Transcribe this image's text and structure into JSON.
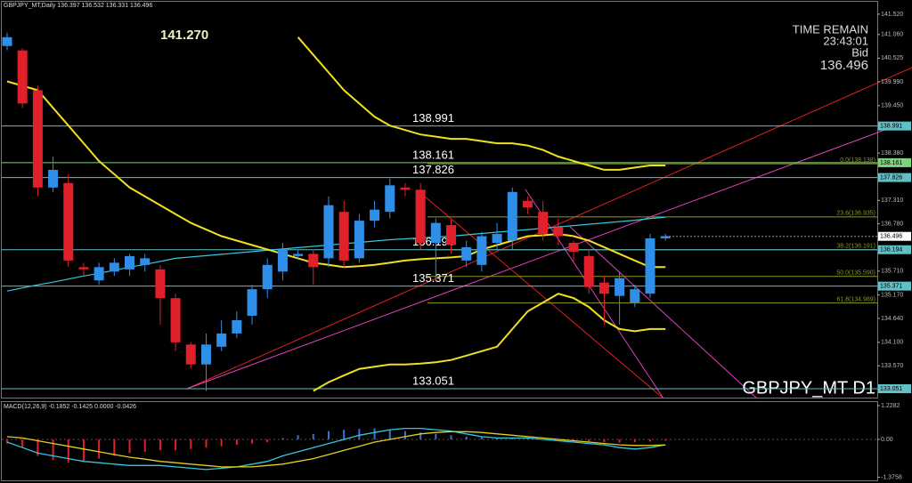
{
  "chart_data": [
    {
      "type": "candlestick",
      "title": "GBPJPY_MT,Daily  136.397 136.532 136.331 136.496",
      "up_color": "#2f8fe8",
      "down_color": "#e0202a",
      "open": [
        140.8,
        140.7,
        139.8,
        137.6,
        137.7,
        135.8,
        135.5,
        135.7,
        135.75,
        135.85,
        135.75,
        135.1,
        134.05,
        133.6,
        134.0,
        134.3,
        134.7,
        135.3,
        135.7,
        136.05,
        136.1,
        136.0,
        137.05,
        136.0,
        136.85,
        137.05,
        137.6,
        137.55,
        136.35,
        136.75,
        135.95,
        135.85,
        136.35,
        136.4,
        137.3,
        137.05,
        136.7,
        136.35,
        136.05,
        135.45,
        135.15,
        135.0,
        135.2,
        136.45
      ],
      "high": [
        141.1,
        140.75,
        139.9,
        138.3,
        137.9,
        135.9,
        135.9,
        136.0,
        136.1,
        136.1,
        135.85,
        135.2,
        134.1,
        134.3,
        134.6,
        134.8,
        135.4,
        136.0,
        136.35,
        136.2,
        136.2,
        137.4,
        137.3,
        137.0,
        137.3,
        137.8,
        137.7,
        137.7,
        136.9,
        136.9,
        136.4,
        136.6,
        136.8,
        137.6,
        137.4,
        137.3,
        136.9,
        136.4,
        136.2,
        135.6,
        135.7,
        135.4,
        136.55,
        136.55
      ],
      "low": [
        140.7,
        139.4,
        137.4,
        137.5,
        135.8,
        135.6,
        135.4,
        135.6,
        135.6,
        135.7,
        134.5,
        133.9,
        133.5,
        133.0,
        133.9,
        134.2,
        134.5,
        135.1,
        135.5,
        136.0,
        135.4,
        135.8,
        135.8,
        135.9,
        136.7,
        136.9,
        137.4,
        136.2,
        135.5,
        136.1,
        135.8,
        135.7,
        136.2,
        136.2,
        137.0,
        136.4,
        136.3,
        135.9,
        135.2,
        134.5,
        134.5,
        134.9,
        135.1,
        136.4
      ],
      "close": [
        141.0,
        139.5,
        137.6,
        138.0,
        135.95,
        135.75,
        135.8,
        135.9,
        136.05,
        136.0,
        135.1,
        134.1,
        133.6,
        134.05,
        134.3,
        134.6,
        135.3,
        135.85,
        136.2,
        136.1,
        135.8,
        137.2,
        135.95,
        136.85,
        137.1,
        137.65,
        137.55,
        136.35,
        136.8,
        136.3,
        136.25,
        136.5,
        136.55,
        137.5,
        137.15,
        136.55,
        136.5,
        136.15,
        135.35,
        135.2,
        135.55,
        135.3,
        136.45,
        136.5
      ],
      "overlays": [
        {
          "color": "#33c8e0",
          "values": [
            135.26,
            135.33,
            135.4,
            135.46,
            135.53,
            135.6,
            135.66,
            135.73,
            135.8,
            135.86,
            135.93,
            136.0,
            136.03,
            136.06,
            136.09,
            136.12,
            136.15,
            136.18,
            136.21,
            136.24,
            136.27,
            136.3,
            136.33,
            136.36,
            136.39,
            136.42,
            136.44,
            136.46,
            136.48,
            136.5,
            136.53,
            136.56,
            136.59,
            136.62,
            136.65,
            136.68,
            136.71,
            136.74,
            136.77,
            136.8,
            136.83,
            136.86,
            136.9,
            136.93
          ]
        },
        {
          "color": "#f0e020",
          "values": [
            140.0,
            139.9,
            139.8,
            139.4,
            139.0,
            138.6,
            138.2,
            137.9,
            137.6,
            137.4,
            137.2,
            137.0,
            136.8,
            136.65,
            136.5,
            136.4,
            136.3,
            136.2,
            136.1,
            136.0,
            135.9,
            135.85,
            135.8,
            135.82,
            135.85,
            135.9,
            135.95,
            135.98,
            136.0,
            136.02,
            136.05,
            136.2,
            136.3,
            136.4,
            136.5,
            136.52,
            136.55,
            136.5,
            136.4,
            136.25,
            136.1,
            135.95,
            135.8,
            135.8
          ]
        },
        {
          "color": "#f0e020",
          "values": [
            null,
            null,
            null,
            null,
            null,
            null,
            null,
            null,
            null,
            null,
            null,
            null,
            null,
            null,
            null,
            null,
            null,
            null,
            null,
            141.0,
            140.6,
            140.2,
            139.8,
            139.5,
            139.2,
            139.0,
            138.9,
            138.8,
            138.75,
            138.7,
            138.7,
            138.65,
            138.6,
            138.6,
            138.55,
            138.45,
            138.3,
            138.2,
            138.1,
            138.0,
            138.0,
            138.05,
            138.1,
            138.1
          ]
        },
        {
          "color": "#f0e020",
          "values": [
            null,
            null,
            null,
            null,
            null,
            null,
            null,
            null,
            null,
            null,
            null,
            null,
            null,
            null,
            null,
            null,
            null,
            null,
            null,
            null,
            133.0,
            133.2,
            133.35,
            133.5,
            133.55,
            133.6,
            133.6,
            133.62,
            133.65,
            133.7,
            133.8,
            133.9,
            134.0,
            134.4,
            134.8,
            135.0,
            135.2,
            135.1,
            134.9,
            134.6,
            134.4,
            134.35,
            134.4,
            134.4
          ]
        }
      ],
      "ylim": [
        132.83,
        141.84
      ],
      "yticks": [
        {
          "value": 141.52,
          "label": "141.520"
        },
        {
          "value": 141.06,
          "label": "141.060"
        },
        140.525,
        {
          "value": 139.99,
          "label": "139.990"
        },
        {
          "value": 139.45,
          "label": "139.450"
        },
        {
          "value": 138.38,
          "label": "138.380"
        },
        {
          "value": 137.31,
          "label": "137.310"
        },
        {
          "value": 136.78,
          "label": "136.780"
        },
        {
          "value": 135.71,
          "label": "135.710"
        },
        {
          "value": 135.17,
          "label": "135.170"
        },
        {
          "value": 134.64,
          "label": "134.640"
        },
        {
          "value": 134.1,
          "label": "134.100"
        },
        {
          "value": 133.57,
          "label": "133.570"
        }
      ],
      "levels": [
        {
          "value": 138.991,
          "color": "#5fc0c8"
        },
        {
          "value": 138.161,
          "color": "#7cd47c"
        },
        {
          "value": 137.826,
          "color": "#5fc0c8"
        },
        {
          "value": 136.194,
          "color": "#5fc0c8"
        },
        {
          "value": 135.371,
          "color": "#5fc0c8"
        },
        {
          "value": 133.051,
          "color": "#5fc0c8"
        }
      ],
      "fib_levels": [
        {
          "label": "0.0(138.138)",
          "value": 138.138
        },
        {
          "label": "23.6(136.935)",
          "value": 136.935
        },
        {
          "label": "38.2(136.191)",
          "value": 136.191
        },
        {
          "label": "50.0(135.590)",
          "value": 135.59
        },
        {
          "label": "61.8(134.989)",
          "value": 134.989
        }
      ],
      "fib_color": "#8a9a20",
      "bid": 136.496,
      "high_label": "141.270",
      "time_remain_label": "TIME REMAIN",
      "time_remain": "23:43:01",
      "bid_label": "Bid",
      "watermark": "GBPJPY_MT D1"
    },
    {
      "type": "macd",
      "title": "MACD(12,26,9) -0.1852 -0.1425 0.0000 -0.0426",
      "histogram": [
        -0.15,
        -0.3,
        -0.6,
        -0.75,
        -0.85,
        -0.8,
        -0.7,
        -0.6,
        -0.5,
        -0.45,
        -0.4,
        -0.4,
        -0.35,
        -0.3,
        -0.25,
        -0.2,
        -0.15,
        -0.1,
        0.05,
        0.15,
        0.2,
        0.3,
        0.35,
        0.38,
        0.4,
        0.35,
        0.3,
        0.25,
        0.2,
        0.15,
        0.1,
        0.08,
        0.06,
        0.05,
        0.03,
        0.01,
        -0.02,
        -0.05,
        -0.08,
        -0.1,
        -0.12,
        -0.1,
        -0.08,
        -0.05
      ],
      "pos_color": "#3a6fe0",
      "neg_color": "#e0202a",
      "series": [
        {
          "color": "#33c8e0",
          "values": [
            -0.1,
            -0.3,
            -0.5,
            -0.6,
            -0.7,
            -0.8,
            -0.85,
            -0.9,
            -0.95,
            -0.95,
            -0.95,
            -1.0,
            -1.05,
            -1.1,
            -1.05,
            -1.0,
            -0.9,
            -0.8,
            -0.6,
            -0.45,
            -0.3,
            -0.15,
            0,
            0.15,
            0.25,
            0.35,
            0.4,
            0.4,
            0.35,
            0.3,
            0.2,
            0.1,
            0.05,
            0.05,
            0.05,
            0.0,
            -0.05,
            -0.1,
            -0.15,
            -0.2,
            -0.3,
            -0.35,
            -0.3,
            -0.2
          ]
        },
        {
          "color": "#e0d020",
          "values": [
            0.1,
            0.05,
            -0.05,
            -0.15,
            -0.25,
            -0.35,
            -0.45,
            -0.55,
            -0.65,
            -0.72,
            -0.8,
            -0.85,
            -0.9,
            -0.95,
            -1.0,
            -1.0,
            -1.0,
            -0.95,
            -0.9,
            -0.8,
            -0.7,
            -0.55,
            -0.4,
            -0.25,
            -0.1,
            0.0,
            0.1,
            0.2,
            0.25,
            0.28,
            0.28,
            0.25,
            0.2,
            0.15,
            0.1,
            0.05,
            0.0,
            -0.05,
            -0.1,
            -0.15,
            -0.2,
            -0.22,
            -0.22,
            -0.2
          ]
        }
      ],
      "ylim": [
        -1.49,
        1.39
      ],
      "yticks": [
        1.2282,
        {
          "value": 0,
          "label": "0.00"
        },
        -1.3758
      ]
    }
  ]
}
